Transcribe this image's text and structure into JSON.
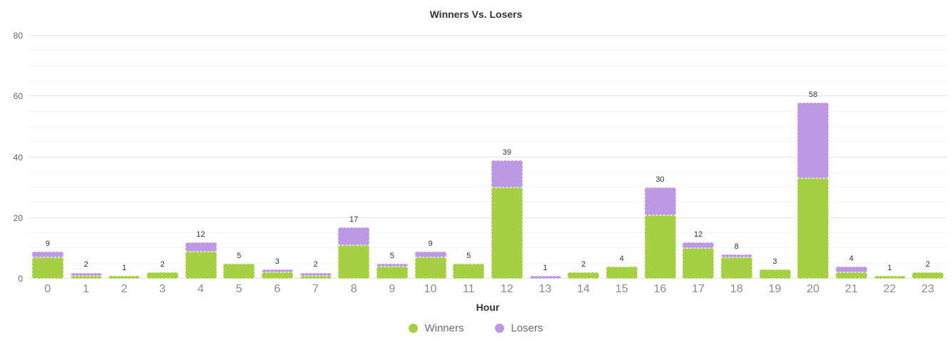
{
  "chart_data": {
    "type": "bar",
    "stacked": true,
    "title": "Winners Vs. Losers",
    "xlabel": "Hour",
    "ylabel": "",
    "ylim": [
      0,
      80
    ],
    "yticks": [
      0,
      20,
      40,
      60,
      80
    ],
    "minor_grid_step": 5,
    "grid": true,
    "legend_position": "bottom",
    "categories": [
      "0",
      "1",
      "2",
      "3",
      "4",
      "5",
      "6",
      "7",
      "8",
      "9",
      "10",
      "11",
      "12",
      "13",
      "14",
      "15",
      "16",
      "17",
      "18",
      "19",
      "20",
      "21",
      "22",
      "23"
    ],
    "series": [
      {
        "name": "Winners",
        "color": "#a5d044",
        "values": [
          7,
          1,
          1,
          2,
          9,
          5,
          2,
          1,
          11,
          4,
          7,
          5,
          30,
          0,
          2,
          4,
          21,
          10,
          7,
          3,
          33,
          2,
          1,
          2
        ]
      },
      {
        "name": "Losers",
        "color": "#bd99e3",
        "values": [
          2,
          1,
          0,
          0,
          3,
          0,
          1,
          1,
          6,
          1,
          2,
          0,
          9,
          1,
          0,
          0,
          9,
          2,
          1,
          0,
          25,
          2,
          0,
          0
        ]
      }
    ],
    "totals": [
      9,
      2,
      1,
      2,
      12,
      5,
      3,
      2,
      17,
      5,
      9,
      5,
      39,
      1,
      2,
      4,
      30,
      12,
      8,
      3,
      58,
      4,
      1,
      2
    ]
  },
  "style": {
    "background": "#ffffff",
    "major_grid_color": "#e8e8e8",
    "minor_grid_color": "#f6f6f6",
    "title_color": "#333333",
    "x_tick_color": "#8a8a8a",
    "y_tick_color": "#666666",
    "value_label_color": "#333333",
    "legend_text_color": "#6b6b6b"
  }
}
